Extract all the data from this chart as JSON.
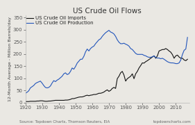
{
  "title": "US Crude Oil Flows",
  "ylabel": "12-Month Average - Million Barrels/day",
  "source_text": "Source: Topdown Charts, Thomson Reuters, EIA",
  "watermark": "topdowncharts.com",
  "xlim": [
    1920,
    2018
  ],
  "ylim": [
    0,
    360
  ],
  "yticks": [
    0,
    50,
    100,
    150,
    200,
    250,
    300,
    350
  ],
  "xticks": [
    1920,
    1930,
    1940,
    1950,
    1960,
    1970,
    1980,
    1990,
    2000,
    2010
  ],
  "bg_color": "#eae8e3",
  "line_imports_color": "#111111",
  "line_production_color": "#2255bb",
  "legend_imports": "US Crude Oil Imports",
  "legend_production": "US Crude Oil Production",
  "production_years": [
    1920,
    1921,
    1922,
    1923,
    1924,
    1925,
    1926,
    1927,
    1928,
    1929,
    1930,
    1931,
    1932,
    1933,
    1934,
    1935,
    1936,
    1937,
    1938,
    1939,
    1940,
    1941,
    1942,
    1943,
    1944,
    1945,
    1946,
    1947,
    1948,
    1949,
    1950,
    1951,
    1952,
    1953,
    1954,
    1955,
    1956,
    1957,
    1958,
    1959,
    1960,
    1961,
    1962,
    1963,
    1964,
    1965,
    1966,
    1967,
    1968,
    1969,
    1970,
    1971,
    1972,
    1973,
    1974,
    1975,
    1976,
    1977,
    1978,
    1979,
    1980,
    1981,
    1982,
    1983,
    1984,
    1985,
    1986,
    1987,
    1988,
    1989,
    1990,
    1991,
    1992,
    1993,
    1994,
    1995,
    1996,
    1997,
    1998,
    1999,
    2000,
    2001,
    2002,
    2003,
    2004,
    2005,
    2006,
    2007,
    2008,
    2009,
    2010,
    2011,
    2012,
    2013,
    2014,
    2015,
    2016,
    2017
  ],
  "production_values": [
    38,
    42,
    48,
    60,
    65,
    70,
    78,
    82,
    85,
    88,
    80,
    70,
    62,
    60,
    62,
    68,
    80,
    90,
    86,
    92,
    96,
    102,
    108,
    118,
    122,
    115,
    118,
    128,
    142,
    137,
    148,
    162,
    170,
    178,
    178,
    190,
    208,
    220,
    212,
    222,
    228,
    232,
    242,
    250,
    258,
    262,
    272,
    280,
    287,
    292,
    297,
    290,
    287,
    282,
    272,
    258,
    248,
    242,
    242,
    244,
    240,
    237,
    232,
    222,
    218,
    210,
    202,
    198,
    198,
    198,
    198,
    194,
    192,
    188,
    186,
    186,
    188,
    192,
    185,
    183,
    183,
    180,
    182,
    178,
    173,
    168,
    165,
    163,
    163,
    162,
    160,
    160,
    163,
    175,
    198,
    215,
    220,
    268
  ],
  "imports_years": [
    1920,
    1921,
    1922,
    1923,
    1924,
    1925,
    1926,
    1927,
    1928,
    1929,
    1930,
    1931,
    1932,
    1933,
    1934,
    1935,
    1936,
    1937,
    1938,
    1939,
    1940,
    1941,
    1942,
    1943,
    1944,
    1945,
    1946,
    1947,
    1948,
    1949,
    1950,
    1951,
    1952,
    1953,
    1954,
    1955,
    1956,
    1957,
    1958,
    1959,
    1960,
    1961,
    1962,
    1963,
    1964,
    1965,
    1966,
    1967,
    1968,
    1969,
    1970,
    1971,
    1972,
    1973,
    1974,
    1975,
    1976,
    1977,
    1978,
    1979,
    1980,
    1981,
    1982,
    1983,
    1984,
    1985,
    1986,
    1987,
    1988,
    1989,
    1990,
    1991,
    1992,
    1993,
    1994,
    1995,
    1996,
    1997,
    1998,
    1999,
    2000,
    2001,
    2002,
    2003,
    2004,
    2005,
    2006,
    2007,
    2008,
    2009,
    2010,
    2011,
    2012,
    2013,
    2014,
    2015,
    2016,
    2017
  ],
  "imports_values": [
    4,
    4,
    4,
    5,
    5,
    5,
    5,
    6,
    6,
    7,
    7,
    6,
    5,
    5,
    6,
    6,
    7,
    8,
    9,
    9,
    9,
    9,
    9,
    9,
    10,
    10,
    11,
    13,
    16,
    16,
    18,
    20,
    22,
    23,
    23,
    25,
    28,
    30,
    28,
    30,
    31,
    33,
    33,
    35,
    38,
    38,
    40,
    43,
    48,
    52,
    46,
    50,
    58,
    62,
    58,
    98,
    108,
    122,
    128,
    113,
    88,
    98,
    103,
    108,
    118,
    98,
    118,
    128,
    142,
    152,
    163,
    162,
    168,
    172,
    177,
    182,
    187,
    192,
    182,
    192,
    212,
    215,
    218,
    218,
    222,
    218,
    212,
    207,
    197,
    182,
    192,
    195,
    187,
    182,
    182,
    175,
    172,
    178
  ],
  "title_fontsize": 7.5,
  "label_fontsize": 4.5,
  "tick_fontsize": 5,
  "source_fontsize": 4,
  "legend_fontsize": 5
}
